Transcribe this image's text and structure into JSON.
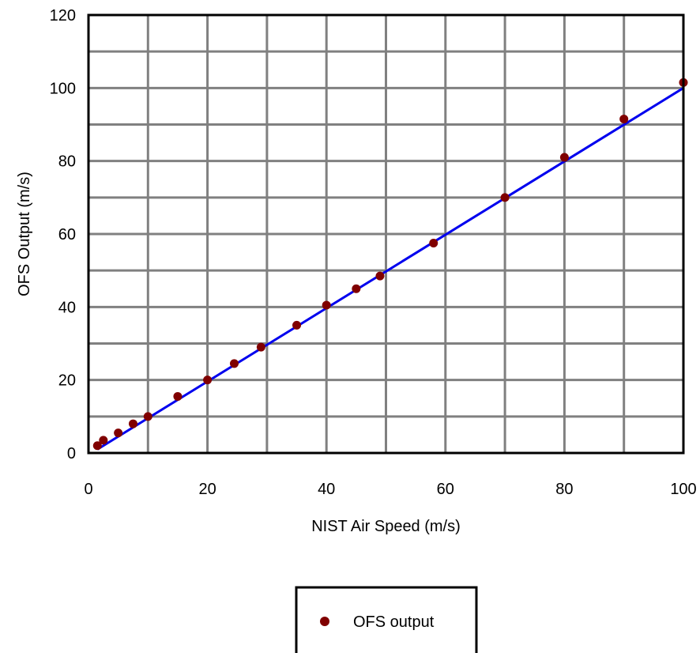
{
  "chart_data": {
    "type": "scatter",
    "title": "",
    "xlabel": "NIST Air Speed (m/s)",
    "ylabel": "OFS Output (m/s)",
    "xlim": [
      0,
      100
    ],
    "ylim": [
      0,
      120
    ],
    "x_ticks": [
      "0",
      "20",
      "40",
      "60",
      "80",
      "100"
    ],
    "y_ticks": [
      "0",
      "20",
      "40",
      "60",
      "80",
      "100",
      "120"
    ],
    "x_tick_values": [
      0,
      20,
      40,
      60,
      80,
      100
    ],
    "y_tick_values": [
      0,
      20,
      40,
      60,
      80,
      100,
      120
    ],
    "grid": true,
    "legend_position": "bottom",
    "series": [
      {
        "name": "OFS output",
        "color": "#800000",
        "marker": "circle",
        "points": [
          [
            1.5,
            2.0
          ],
          [
            2.5,
            3.5
          ],
          [
            5,
            5.5
          ],
          [
            7.5,
            8.0
          ],
          [
            10,
            10.0
          ],
          [
            15,
            15.5
          ],
          [
            20,
            20.0
          ],
          [
            24.5,
            24.5
          ],
          [
            29,
            29.0
          ],
          [
            35,
            35.0
          ],
          [
            40,
            40.5
          ],
          [
            45,
            45.0
          ],
          [
            49,
            48.5
          ],
          [
            58,
            57.5
          ],
          [
            70,
            70.0
          ],
          [
            80,
            81.0
          ],
          [
            90,
            91.5
          ],
          [
            100,
            101.5
          ]
        ]
      }
    ],
    "fit_line": {
      "color": "#0000ee",
      "points": [
        [
          1.5,
          1.0
        ],
        [
          100,
          100.0
        ]
      ]
    }
  }
}
